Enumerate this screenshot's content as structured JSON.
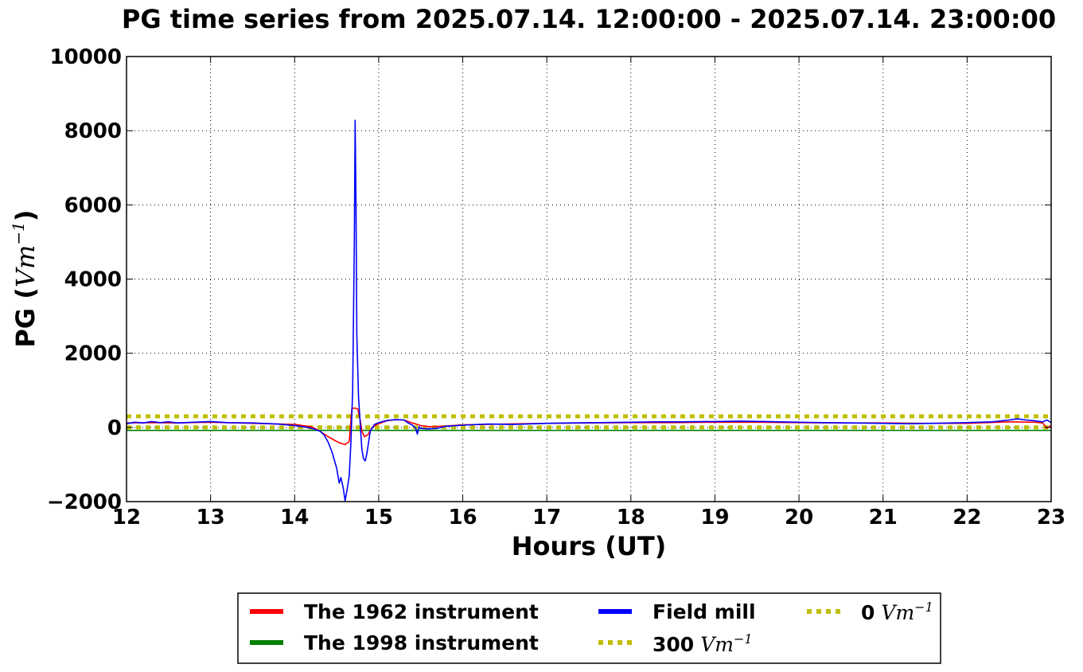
{
  "chart_data": {
    "type": "line",
    "title": "PG time series from 2025.07.14. 12:00:00 - 2025.07.14. 23:00:00",
    "xlabel": "Hours (UT)",
    "ylabel": {
      "prefix": "PG (",
      "unit": "Vm",
      "exp": "−1",
      "suffix": ")"
    },
    "xlim": [
      12,
      23
    ],
    "ylim": [
      -2000,
      10000
    ],
    "xticks": [
      12,
      13,
      14,
      15,
      16,
      17,
      18,
      19,
      20,
      21,
      22,
      23
    ],
    "yticks": [
      -2000,
      0,
      2000,
      4000,
      6000,
      8000,
      10000
    ],
    "xtick_labels": [
      "12",
      "13",
      "14",
      "15",
      "16",
      "17",
      "18",
      "19",
      "20",
      "21",
      "22",
      "23"
    ],
    "ytick_labels": [
      "−2000",
      "0",
      "2000",
      "4000",
      "6000",
      "8000",
      "10000"
    ],
    "grid": true,
    "legend_position": "bottom-center, below plot",
    "series": [
      {
        "name": "The 1962 instrument",
        "color": "#ff0000",
        "style": "solid",
        "points": [
          [
            12.0,
            120
          ],
          [
            12.3,
            130
          ],
          [
            12.6,
            120
          ],
          [
            13.0,
            140
          ],
          [
            13.5,
            110
          ],
          [
            14.0,
            80
          ],
          [
            14.2,
            20
          ],
          [
            14.3,
            -100
          ],
          [
            14.4,
            -250
          ],
          [
            14.5,
            -380
          ],
          [
            14.55,
            -430
          ],
          [
            14.6,
            -460
          ],
          [
            14.65,
            -380
          ],
          [
            14.68,
            500
          ],
          [
            14.7,
            520
          ],
          [
            14.72,
            520
          ],
          [
            14.75,
            500
          ],
          [
            14.78,
            200
          ],
          [
            14.8,
            -100
          ],
          [
            14.83,
            -250
          ],
          [
            14.87,
            -200
          ],
          [
            14.92,
            0
          ],
          [
            15.0,
            100
          ],
          [
            15.1,
            180
          ],
          [
            15.2,
            210
          ],
          [
            15.3,
            200
          ],
          [
            15.4,
            120
          ],
          [
            15.5,
            50
          ],
          [
            15.6,
            20
          ],
          [
            15.8,
            40
          ],
          [
            16.0,
            70
          ],
          [
            16.5,
            90
          ],
          [
            17.0,
            110
          ],
          [
            17.5,
            120
          ],
          [
            18.0,
            130
          ],
          [
            18.5,
            130
          ],
          [
            19.0,
            140
          ],
          [
            19.5,
            140
          ],
          [
            20.0,
            130
          ],
          [
            20.5,
            120
          ],
          [
            21.0,
            120
          ],
          [
            21.5,
            110
          ],
          [
            22.0,
            110
          ],
          [
            22.5,
            150
          ],
          [
            22.8,
            140
          ],
          [
            22.9,
            120
          ],
          [
            22.95,
            -20
          ],
          [
            23.0,
            60
          ]
        ]
      },
      {
        "name": "The 1998 instrument",
        "color": "#008000",
        "style": "solid",
        "points": [
          [
            12.0,
            -80
          ],
          [
            23.0,
            -80
          ]
        ]
      },
      {
        "name": "Field mill",
        "color": "#0000ff",
        "style": "solid",
        "points": [
          [
            12.0,
            100
          ],
          [
            12.1,
            140
          ],
          [
            12.2,
            120
          ],
          [
            12.3,
            160
          ],
          [
            12.4,
            130
          ],
          [
            12.5,
            150
          ],
          [
            12.6,
            120
          ],
          [
            12.8,
            140
          ],
          [
            13.0,
            160
          ],
          [
            13.2,
            130
          ],
          [
            13.5,
            120
          ],
          [
            13.8,
            90
          ],
          [
            14.0,
            50
          ],
          [
            14.1,
            20
          ],
          [
            14.2,
            -20
          ],
          [
            14.3,
            -100
          ],
          [
            14.35,
            -200
          ],
          [
            14.4,
            -400
          ],
          [
            14.45,
            -700
          ],
          [
            14.5,
            -1100
          ],
          [
            14.53,
            -1500
          ],
          [
            14.55,
            -1350
          ],
          [
            14.58,
            -1650
          ],
          [
            14.6,
            -1980
          ],
          [
            14.63,
            -1600
          ],
          [
            14.65,
            -1300
          ],
          [
            14.67,
            -400
          ],
          [
            14.69,
            1000
          ],
          [
            14.71,
            5000
          ],
          [
            14.72,
            8280
          ],
          [
            14.73,
            6000
          ],
          [
            14.74,
            2500
          ],
          [
            14.76,
            800
          ],
          [
            14.78,
            100
          ],
          [
            14.8,
            -600
          ],
          [
            14.82,
            -850
          ],
          [
            14.84,
            -900
          ],
          [
            14.86,
            -700
          ],
          [
            14.9,
            -100
          ],
          [
            14.95,
            80
          ],
          [
            15.0,
            130
          ],
          [
            15.1,
            190
          ],
          [
            15.2,
            210
          ],
          [
            15.3,
            200
          ],
          [
            15.35,
            120
          ],
          [
            15.4,
            60
          ],
          [
            15.44,
            -20
          ],
          [
            15.46,
            -180
          ],
          [
            15.48,
            20
          ],
          [
            15.5,
            -30
          ],
          [
            15.6,
            -40
          ],
          [
            15.7,
            -20
          ],
          [
            15.8,
            30
          ],
          [
            16.0,
            60
          ],
          [
            16.3,
            90
          ],
          [
            16.6,
            80
          ],
          [
            17.0,
            110
          ],
          [
            17.3,
            120
          ],
          [
            17.6,
            130
          ],
          [
            18.0,
            140
          ],
          [
            18.3,
            150
          ],
          [
            18.6,
            150
          ],
          [
            19.0,
            160
          ],
          [
            19.3,
            170
          ],
          [
            19.6,
            160
          ],
          [
            20.0,
            140
          ],
          [
            20.3,
            130
          ],
          [
            20.6,
            120
          ],
          [
            21.0,
            110
          ],
          [
            21.3,
            100
          ],
          [
            21.6,
            110
          ],
          [
            22.0,
            130
          ],
          [
            22.3,
            150
          ],
          [
            22.5,
            200
          ],
          [
            22.6,
            230
          ],
          [
            22.7,
            200
          ],
          [
            22.8,
            180
          ],
          [
            22.9,
            150
          ],
          [
            22.95,
            200
          ],
          [
            23.0,
            130
          ]
        ]
      },
      {
        "name": "300",
        "unit": "Vm",
        "exp": "−1",
        "color": "#bfbf00",
        "style": "dotted",
        "points": [
          [
            12.0,
            300
          ],
          [
            23.0,
            300
          ]
        ]
      },
      {
        "name": "0",
        "unit": "Vm",
        "exp": "−1",
        "color": "#bfbf00",
        "style": "dotted",
        "points": [
          [
            12.0,
            0
          ],
          [
            23.0,
            0
          ]
        ]
      }
    ]
  }
}
